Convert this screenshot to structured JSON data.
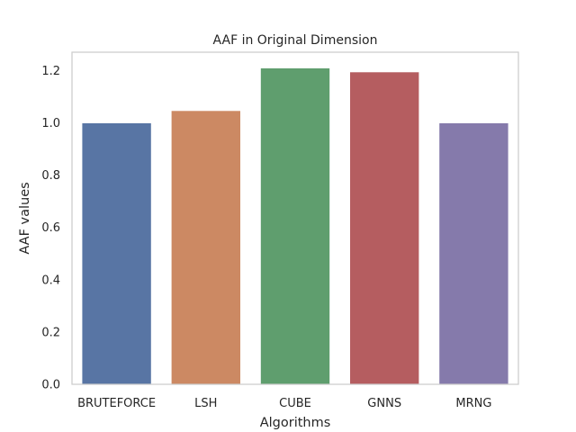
{
  "chart_data": {
    "type": "bar",
    "title": "AAF in Original Dimension",
    "xlabel": "Algorithms",
    "ylabel": "AAF values",
    "categories": [
      "BRUTEFORCE",
      "LSH",
      "CUBE",
      "GNNS",
      "MRNG"
    ],
    "values": [
      1.0,
      1.047,
      1.21,
      1.195,
      1.0
    ],
    "colors": [
      "#5875a4",
      "#cc8963",
      "#5f9e6e",
      "#b55d60",
      "#857aab"
    ],
    "ylim": [
      0,
      1.27
    ],
    "yticks": [
      0.0,
      0.2,
      0.4,
      0.6,
      0.8,
      1.0,
      1.2
    ],
    "ytick_labels": [
      "0.0",
      "0.2",
      "0.4",
      "0.6",
      "0.8",
      "1.0",
      "1.2"
    ],
    "grid": false,
    "legend": "none"
  }
}
